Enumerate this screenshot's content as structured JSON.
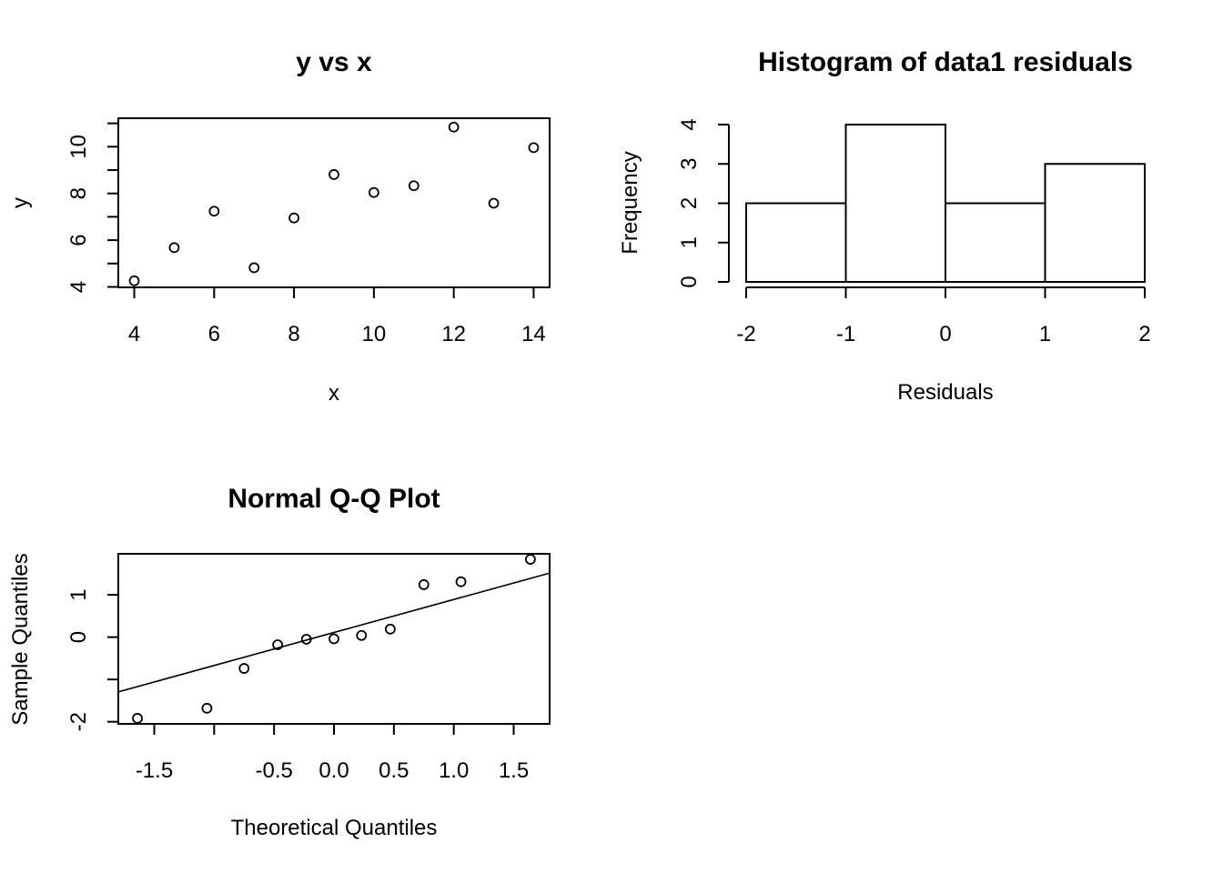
{
  "chart_data": [
    {
      "type": "scatter",
      "title": "y vs x",
      "xlabel": "x",
      "ylabel": "y",
      "xlim": [
        3.6,
        14.4
      ],
      "ylim": [
        3.98,
        11.22
      ],
      "xticks": [
        4,
        6,
        8,
        10,
        12,
        14
      ],
      "yticks": [
        4,
        6,
        8,
        10
      ],
      "yminor_ticks": [
        5,
        7,
        9,
        11
      ],
      "points": [
        {
          "x": 4,
          "y": 4.26
        },
        {
          "x": 5,
          "y": 5.68
        },
        {
          "x": 6,
          "y": 7.24
        },
        {
          "x": 7,
          "y": 4.82
        },
        {
          "x": 8,
          "y": 6.95
        },
        {
          "x": 9,
          "y": 8.81
        },
        {
          "x": 10,
          "y": 8.04
        },
        {
          "x": 11,
          "y": 8.33
        },
        {
          "x": 12,
          "y": 10.84
        },
        {
          "x": 13,
          "y": 7.58
        },
        {
          "x": 14,
          "y": 9.96
        }
      ],
      "grid": false
    },
    {
      "type": "bar",
      "title": "Histogram of data1 residuals",
      "xlabel": "Residuals",
      "ylabel": "Frequency",
      "xlim": [
        -2,
        2
      ],
      "ylim": [
        0,
        4
      ],
      "xticks": [
        -2,
        -1,
        0,
        1,
        2
      ],
      "yticks": [
        0,
        1,
        2,
        3,
        4
      ],
      "bins": [
        {
          "from": -2,
          "to": -1,
          "count": 2
        },
        {
          "from": -1,
          "to": 0,
          "count": 4
        },
        {
          "from": 0,
          "to": 1,
          "count": 2
        },
        {
          "from": 1,
          "to": 2,
          "count": 3
        }
      ],
      "grid": false
    },
    {
      "type": "scatter",
      "title": "Normal Q-Q Plot",
      "xlabel": "Theoretical Quantiles",
      "ylabel": "Sample Quantiles",
      "xlim": [
        -1.8,
        1.8
      ],
      "ylim": [
        -2.05,
        1.97
      ],
      "xticks": [
        -1.5,
        -1.0,
        -0.5,
        0.0,
        0.5,
        1.0,
        1.5
      ],
      "xtick_labels": [
        "-1.5",
        "",
        "-0.5",
        "0.0",
        "0.5",
        "1.0",
        "1.5"
      ],
      "yticks": [
        -2,
        -1,
        0,
        1
      ],
      "ytick_labels": [
        "-2",
        "",
        "0",
        "1"
      ],
      "points": [
        {
          "x": -1.64,
          "y": -1.92
        },
        {
          "x": -1.06,
          "y": -1.68
        },
        {
          "x": -0.75,
          "y": -0.74
        },
        {
          "x": -0.47,
          "y": -0.18
        },
        {
          "x": -0.23,
          "y": -0.05
        },
        {
          "x": 0.0,
          "y": -0.04
        },
        {
          "x": 0.23,
          "y": 0.04
        },
        {
          "x": 0.47,
          "y": 0.19
        },
        {
          "x": 0.75,
          "y": 1.24
        },
        {
          "x": 1.06,
          "y": 1.31
        },
        {
          "x": 1.64,
          "y": 1.84
        }
      ],
      "reference_line": {
        "intercept": 0.11,
        "slope": 0.78
      },
      "grid": false
    }
  ]
}
